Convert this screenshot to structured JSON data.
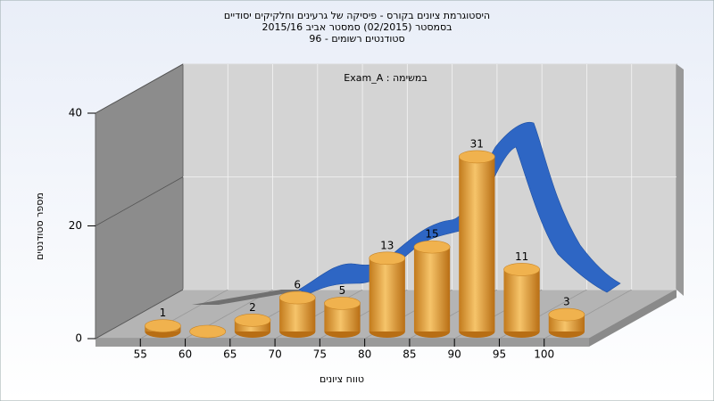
{
  "chart_data": {
    "type": "histogram",
    "title": [
      "היסטוגרמת ציונים בקורס - פיסיקה של גרעינים וחלקיקים יסודיים",
      "בסמסטר (02/2015) סמסטר אביב 2015/16",
      "סטודנטים רשומים - 96"
    ],
    "annotation": "במשימה : Exam_A",
    "x_label": "טווח ציונים",
    "y_label": "מספר סטודנטים",
    "bins": [
      55,
      60,
      65,
      70,
      75,
      80,
      85,
      90,
      95,
      100,
      105
    ],
    "counts": [
      1,
      0,
      2,
      6,
      5,
      13,
      15,
      31,
      11,
      3
    ],
    "color": "#e8a23c",
    "xlim": [
      50,
      105
    ],
    "xticks": [
      55,
      60,
      65,
      70,
      75,
      80,
      85,
      90,
      95,
      100
    ],
    "ylim": [
      0,
      40
    ],
    "yticks": [
      0,
      20,
      40
    ],
    "grid": true
  }
}
